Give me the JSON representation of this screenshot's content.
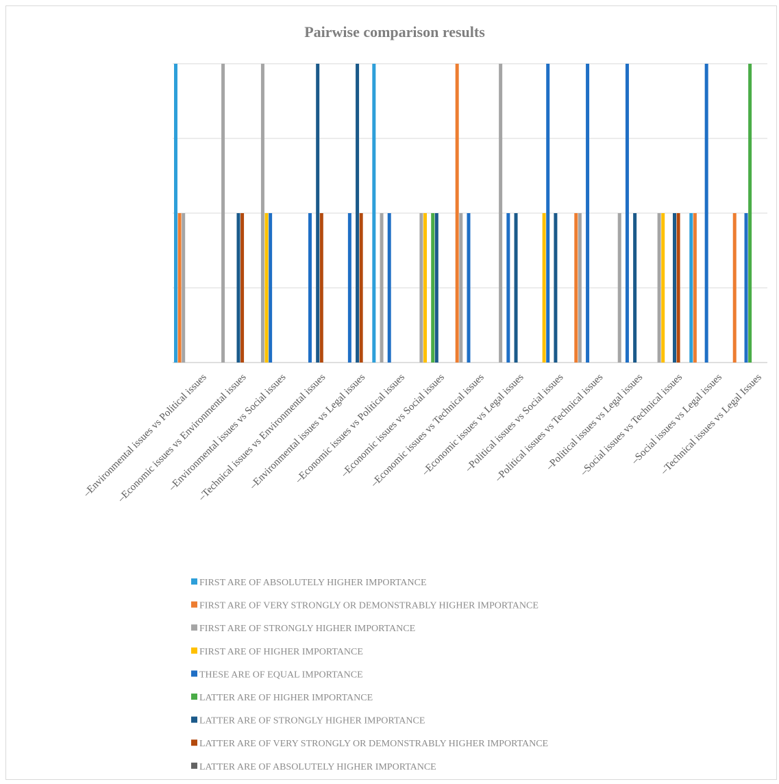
{
  "chart_data": {
    "type": "bar",
    "title": "Pairwise comparison results",
    "xlabel": "",
    "ylabel": "",
    "ylim": [
      0,
      4
    ],
    "grid": true,
    "legend_position": "bottom",
    "categories": [
      "Environmental issues vs Political issues",
      "Economic issues vs Environmental issues",
      "Environmental issues vs Social issues",
      "Technical issues vs Environmental issues",
      "Environmental issues vs Legal issues",
      "Economic issues vs Political issues",
      "Economic issues vs Social issues",
      "Economic issues vs Technical issues",
      "Economic issues vs Legal issues",
      "Political issues vs Social issues",
      "Political issues vs Technical issues",
      "Political issues vs Legal issues",
      "Social issues vs Technical issues",
      "Social issues vs Legal issues",
      "Technical issues vs Legal Issues"
    ],
    "series": [
      {
        "name": "FIRST ARE OF ABSOLUTELY HIGHER IMPORTANCE",
        "color": "#2e9fd9",
        "values": [
          4,
          0,
          0,
          0,
          0,
          4,
          0,
          0,
          0,
          0,
          0,
          0,
          0,
          2,
          0
        ]
      },
      {
        "name": "FIRST ARE OF VERY STRONGLY OR DEMONSTRABLY HIGHER IMPORTANCE",
        "color": "#ed7d31",
        "values": [
          2,
          0,
          0,
          0,
          0,
          0,
          0,
          4,
          0,
          0,
          2,
          0,
          0,
          2,
          2
        ]
      },
      {
        "name": "FIRST ARE OF STRONGLY HIGHER IMPORTANCE",
        "color": "#a5a5a5",
        "values": [
          2,
          4,
          4,
          0,
          0,
          2,
          2,
          2,
          4,
          0,
          2,
          2,
          2,
          0,
          0
        ]
      },
      {
        "name": "FIRST ARE OF HIGHER IMPORTANCE",
        "color": "#ffc000",
        "values": [
          0,
          0,
          2,
          0,
          0,
          0,
          2,
          0,
          0,
          2,
          0,
          0,
          2,
          0,
          0
        ]
      },
      {
        "name": "THESE ARE OF EQUAL IMPORTANCE",
        "color": "#1f6fc5",
        "values": [
          0,
          0,
          2,
          2,
          2,
          2,
          0,
          2,
          2,
          4,
          4,
          4,
          0,
          4,
          2
        ]
      },
      {
        "name": "LATTER ARE OF HIGHER IMPORTANCE",
        "color": "#4aac47",
        "values": [
          0,
          0,
          0,
          0,
          0,
          0,
          2,
          0,
          0,
          0,
          0,
          0,
          0,
          0,
          4
        ]
      },
      {
        "name": "LATTER ARE OF STRONGLY HIGHER IMPORTANCE",
        "color": "#1b5a8a",
        "values": [
          0,
          2,
          0,
          4,
          4,
          0,
          2,
          0,
          2,
          2,
          0,
          2,
          2,
          0,
          0
        ]
      },
      {
        "name": "LATTER ARE OF VERY STRONGLY OR DEMONSTRABLY HIGHER IMPORTANCE",
        "color": "#b34a0e",
        "values": [
          0,
          2,
          0,
          2,
          2,
          0,
          0,
          0,
          0,
          0,
          0,
          0,
          2,
          0,
          0
        ]
      },
      {
        "name": "LATTER ARE OF ABSOLUTELY HIGHER IMPORTANCE",
        "color": "#636363",
        "values": [
          0,
          0,
          0,
          0,
          0,
          0,
          0,
          0,
          0,
          0,
          0,
          0,
          0,
          0,
          0
        ]
      }
    ]
  }
}
